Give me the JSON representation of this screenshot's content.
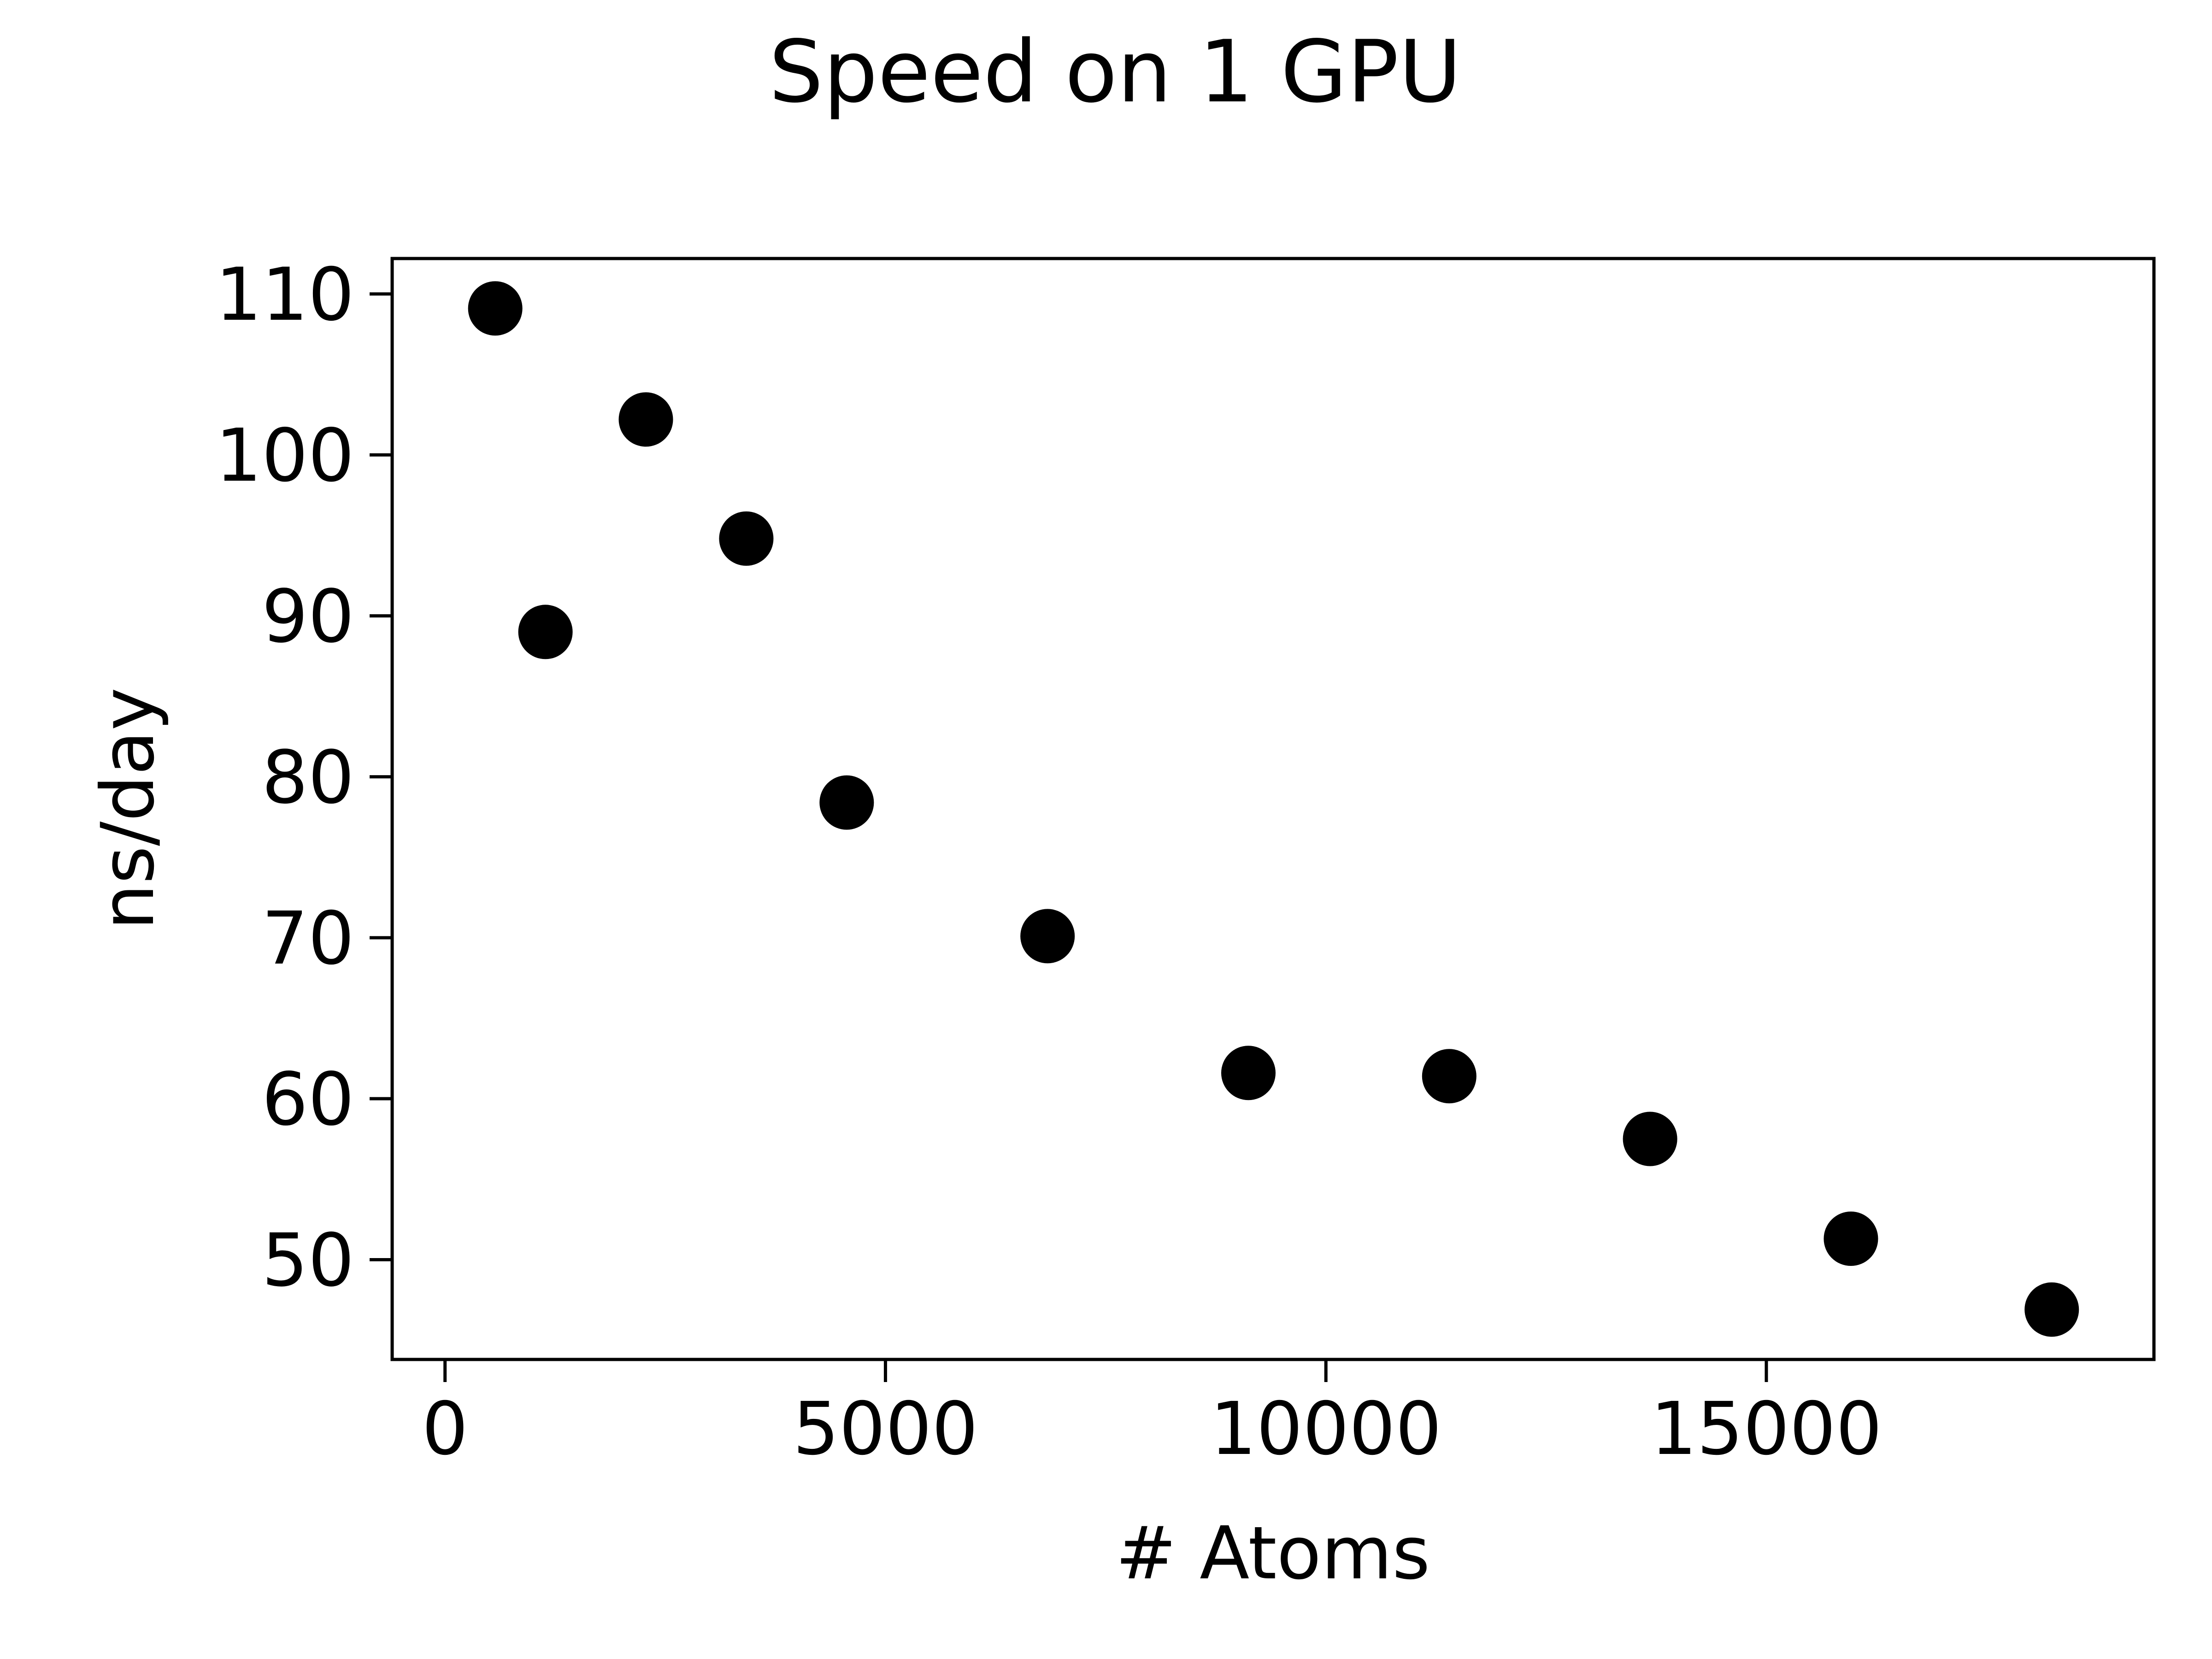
{
  "chart_data": {
    "type": "scatter",
    "title": "Speed on 1 GPU",
    "xlabel": "# Atoms",
    "ylabel": "ns/day",
    "xlim": [
      -600,
      19400
    ],
    "ylim": [
      43.8,
      112.2
    ],
    "xticks": [
      0,
      5000,
      10000,
      15000
    ],
    "xtick_labels": [
      "0",
      "5000",
      "10000",
      "15000"
    ],
    "yticks": [
      50,
      60,
      70,
      80,
      90,
      100,
      110
    ],
    "ytick_labels": [
      "50",
      "60",
      "70",
      "80",
      "90",
      "100",
      "110"
    ],
    "grid": false,
    "marker_color": "#000000",
    "series": [
      {
        "x": [
          570,
          1140,
          2280,
          3420,
          4560,
          6840,
          9120,
          11400,
          13680,
          15960,
          18240
        ],
        "y": [
          109.1,
          89.0,
          102.2,
          94.8,
          78.4,
          70.1,
          61.6,
          61.4,
          57.5,
          51.3,
          46.9
        ]
      }
    ]
  }
}
